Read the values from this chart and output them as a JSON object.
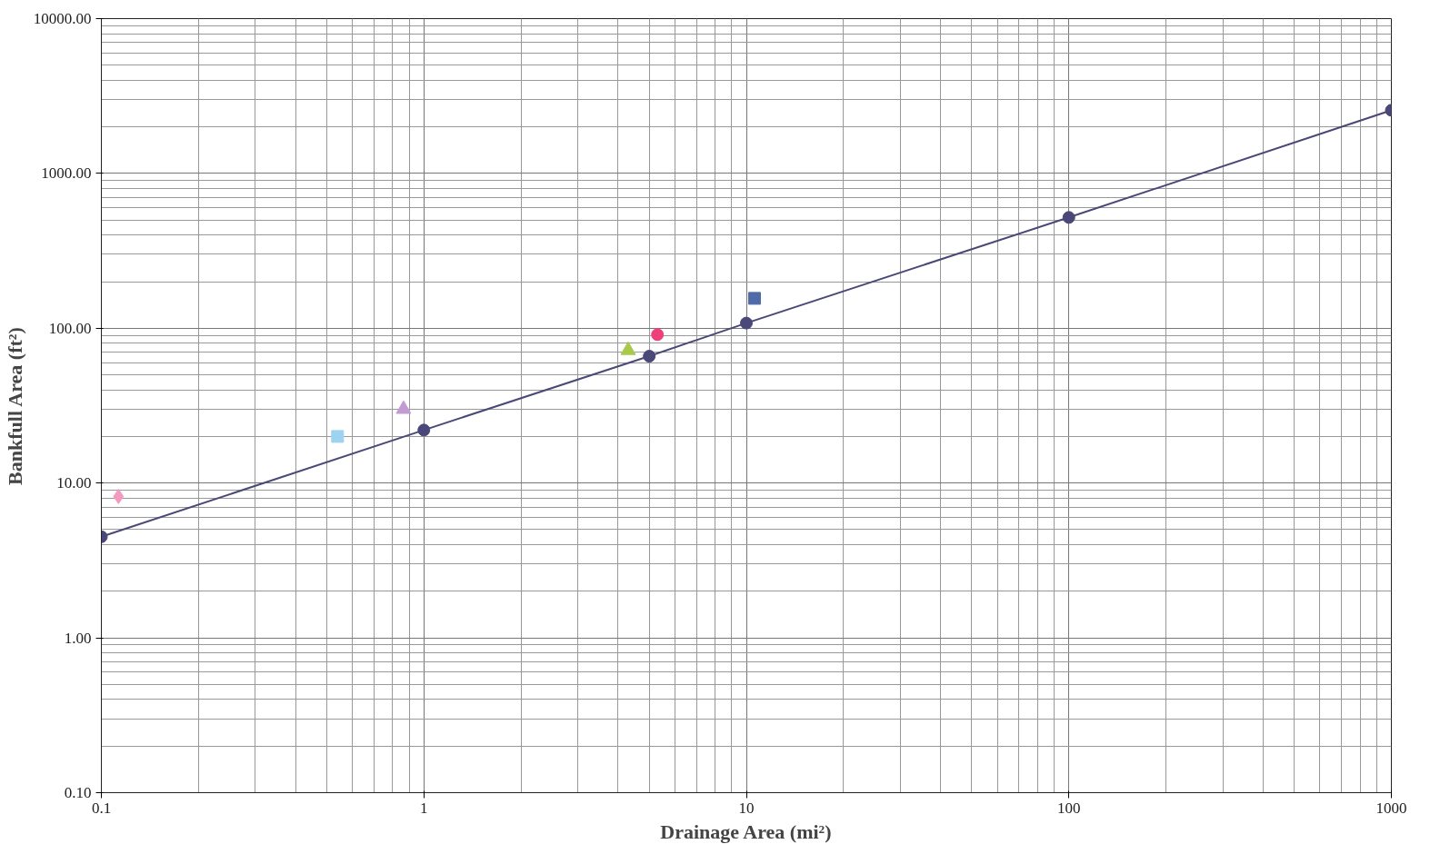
{
  "chart_data": {
    "type": "scatter",
    "xlabel": "Drainage Area (mi²)",
    "ylabel": "Bankfull Area (ft²)",
    "log": "xy",
    "grid": true,
    "xlim": [
      0.1,
      1000
    ],
    "ylim": [
      0.1,
      10000
    ],
    "xticks": [
      0.1,
      1,
      10,
      100,
      1000
    ],
    "yticks": [
      {
        "value": 0.1,
        "label": "0.10"
      },
      {
        "value": 1,
        "label": "1.00"
      },
      {
        "value": 10,
        "label": "10.00"
      },
      {
        "value": 100,
        "label": "100.00"
      },
      {
        "value": 1000,
        "label": "1000.00"
      },
      {
        "value": 10000,
        "label": "10000.00"
      }
    ],
    "series": [
      {
        "type": "line",
        "color": "#4a4878",
        "marker": "circle",
        "x": [
          0.1,
          1,
          5,
          10,
          100,
          1000
        ],
        "values": [
          4.5,
          22,
          66,
          108,
          520,
          2560
        ]
      },
      {
        "color": "#f49ac1",
        "marker": "diamond",
        "x": [
          0.113
        ],
        "values": [
          8.2
        ]
      },
      {
        "color": "#9dd3f0",
        "marker": "square",
        "x": [
          0.54
        ],
        "values": [
          20
        ]
      },
      {
        "color": "#c39bd3",
        "marker": "triangle",
        "x": [
          0.865
        ],
        "values": [
          30
        ]
      },
      {
        "color": "#a8c94a",
        "marker": "triangle",
        "x": [
          4.3
        ],
        "values": [
          72
        ]
      },
      {
        "color": "#ee3f7a",
        "marker": "circle",
        "x": [
          5.3
        ],
        "values": [
          91
        ]
      },
      {
        "color": "#4f6aa8",
        "marker": "square",
        "x": [
          10.6
        ],
        "values": [
          156
        ]
      }
    ]
  }
}
